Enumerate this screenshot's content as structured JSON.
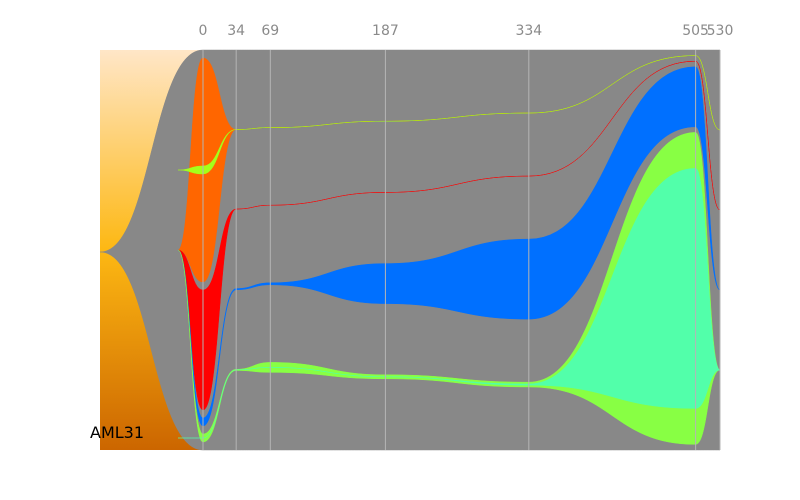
{
  "chart_data": {
    "type": "fish-plot",
    "title": "",
    "sample_label": "AML31",
    "x_ticks": [
      0,
      34,
      69,
      187,
      334,
      505,
      530
    ],
    "x_range": [
      0,
      530
    ],
    "y_range": [
      0,
      1
    ],
    "grid": true,
    "background_gradient": [
      "#ffe6c7",
      "#fdb813",
      "#cc6600"
    ],
    "clones": [
      {
        "id": "founder",
        "color": "#888888",
        "parent": null,
        "values": [
          1.0,
          1.0,
          1.0,
          1.0,
          1.0,
          1.0,
          1.0
        ]
      },
      {
        "id": "orange",
        "color": "#ff6600",
        "parent": "founder",
        "values": [
          0.56,
          0.0,
          0.0,
          0.0,
          0.0,
          0.0,
          0.0
        ]
      },
      {
        "id": "red",
        "color": "#ff0000",
        "parent": "founder",
        "values": [
          0.3,
          0.0,
          0.0,
          0.0,
          0.0,
          0.0,
          0.0
        ]
      },
      {
        "id": "blue",
        "color": "#0070ff",
        "parent": "founder",
        "values": [
          0.02,
          0.003,
          0.005,
          0.1,
          0.2,
          0.15,
          0.0
        ]
      },
      {
        "id": "lime1",
        "color": "#a4ff1a",
        "parent": "orange",
        "values": [
          0.02,
          0.0,
          0.0,
          0.0,
          0.0,
          0.0,
          0.0
        ]
      },
      {
        "id": "lime2",
        "color": "#88ff44",
        "parent": "founder",
        "values": [
          0.02,
          0.003,
          0.025,
          0.01,
          0.012,
          0.78,
          0.0
        ]
      },
      {
        "id": "mint",
        "color": "#52ffaa",
        "parent": "lime2",
        "values": [
          0.0,
          0.0,
          0.0,
          0.0,
          0.003,
          0.6,
          0.0
        ]
      }
    ]
  }
}
